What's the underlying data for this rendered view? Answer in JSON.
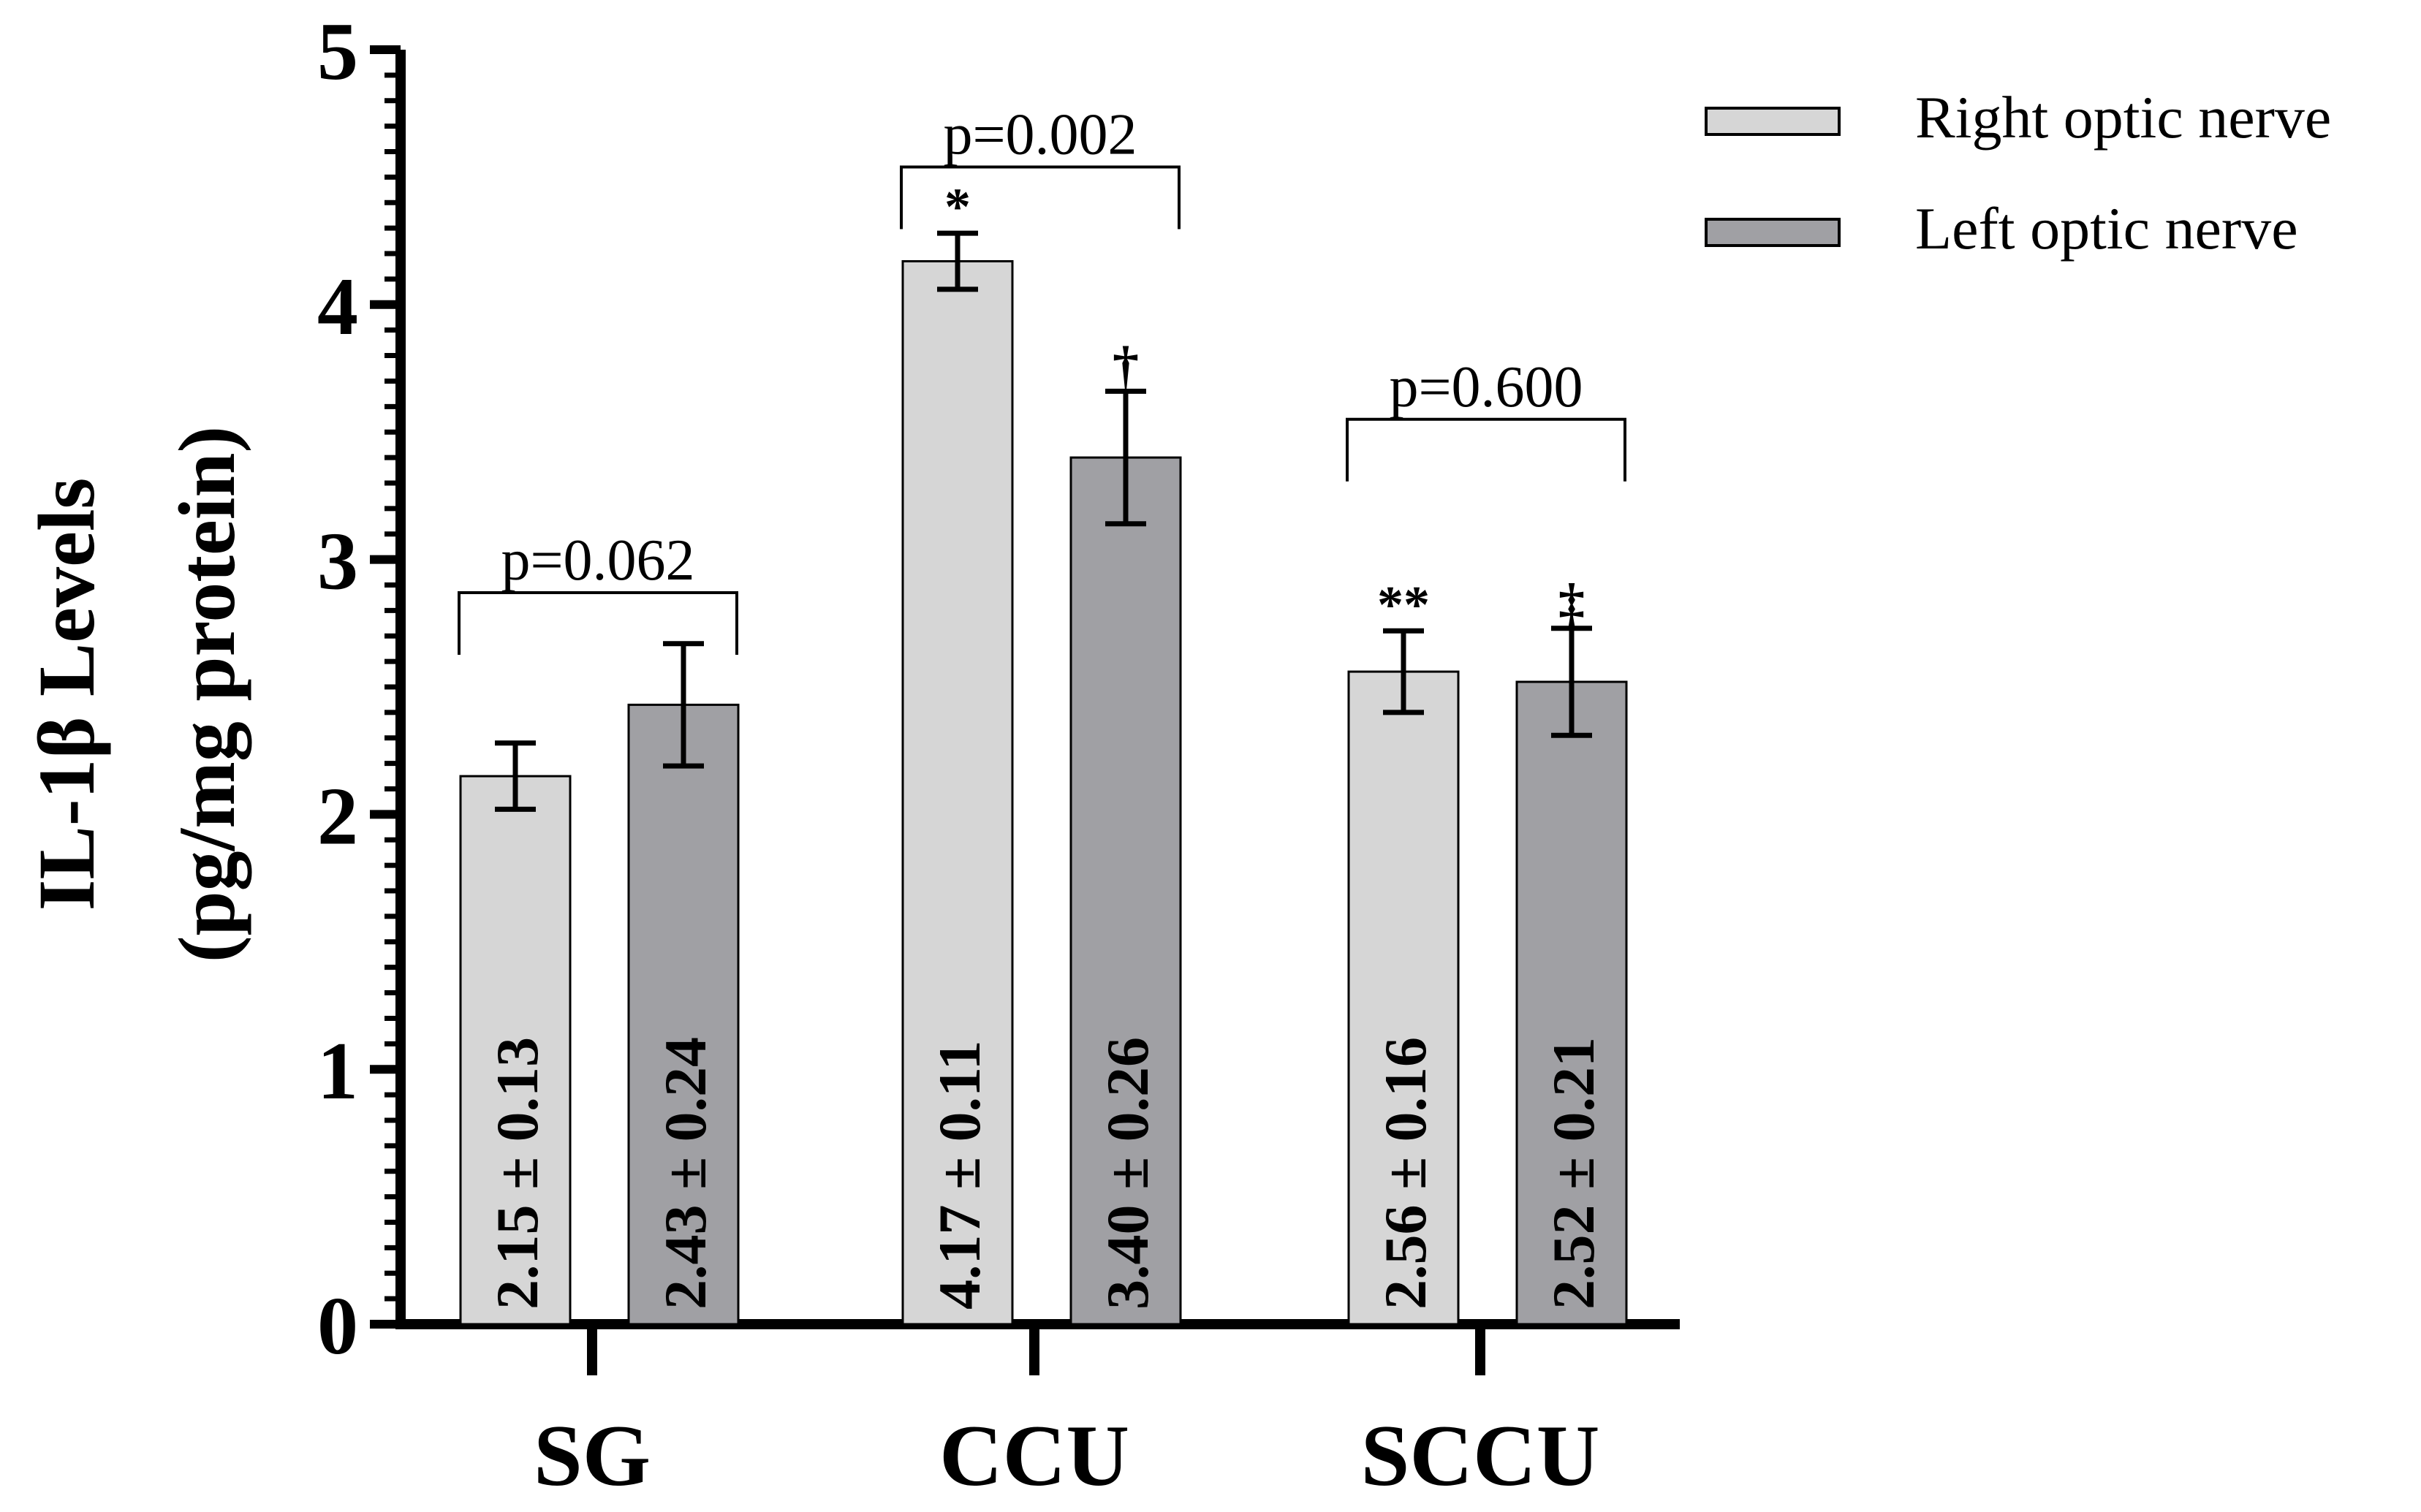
{
  "chart_data": {
    "type": "bar",
    "title": "",
    "ylabel_line1": "IL-1β Levels",
    "ylabel_line2": "(pg/mg protein)",
    "xlabel": "",
    "ylim": [
      0,
      5
    ],
    "yticks": [
      0,
      1,
      2,
      3,
      4,
      5
    ],
    "ytick_labels": [
      "0",
      "1",
      "2",
      "3",
      "4",
      "5"
    ],
    "minor_ticks_per_unit": 10,
    "categories": [
      "SG",
      "CCU",
      "SCCU"
    ],
    "series": [
      {
        "name": "Right optic nerve",
        "color": "#d6d6d6",
        "values": [
          2.15,
          4.17,
          2.56
        ],
        "errors": [
          0.13,
          0.11,
          0.16
        ],
        "value_labels": [
          "2.15 ± 0.13",
          "4.17 ± 0.11",
          "2.56 ± 0.16"
        ],
        "markers": [
          "",
          "*",
          "**"
        ]
      },
      {
        "name": "Left optic nerve",
        "color": "#a0a0a4",
        "values": [
          2.43,
          3.4,
          2.52
        ],
        "errors": [
          0.24,
          0.26,
          0.21
        ],
        "value_labels": [
          "2.43 ± 0.24",
          "3.40 ± 0.26",
          "2.52 ± 0.21"
        ],
        "markers": [
          "",
          "†",
          "‡"
        ]
      }
    ],
    "comparisons": [
      {
        "category": "SG",
        "label": "p=0.062",
        "bracket_y": 2.87
      },
      {
        "category": "CCU",
        "label": "p=0.002",
        "bracket_y": 4.54
      },
      {
        "category": "SCCU",
        "label": "p=0.600",
        "bracket_y": 3.55
      }
    ],
    "legend_position": "top-right"
  }
}
